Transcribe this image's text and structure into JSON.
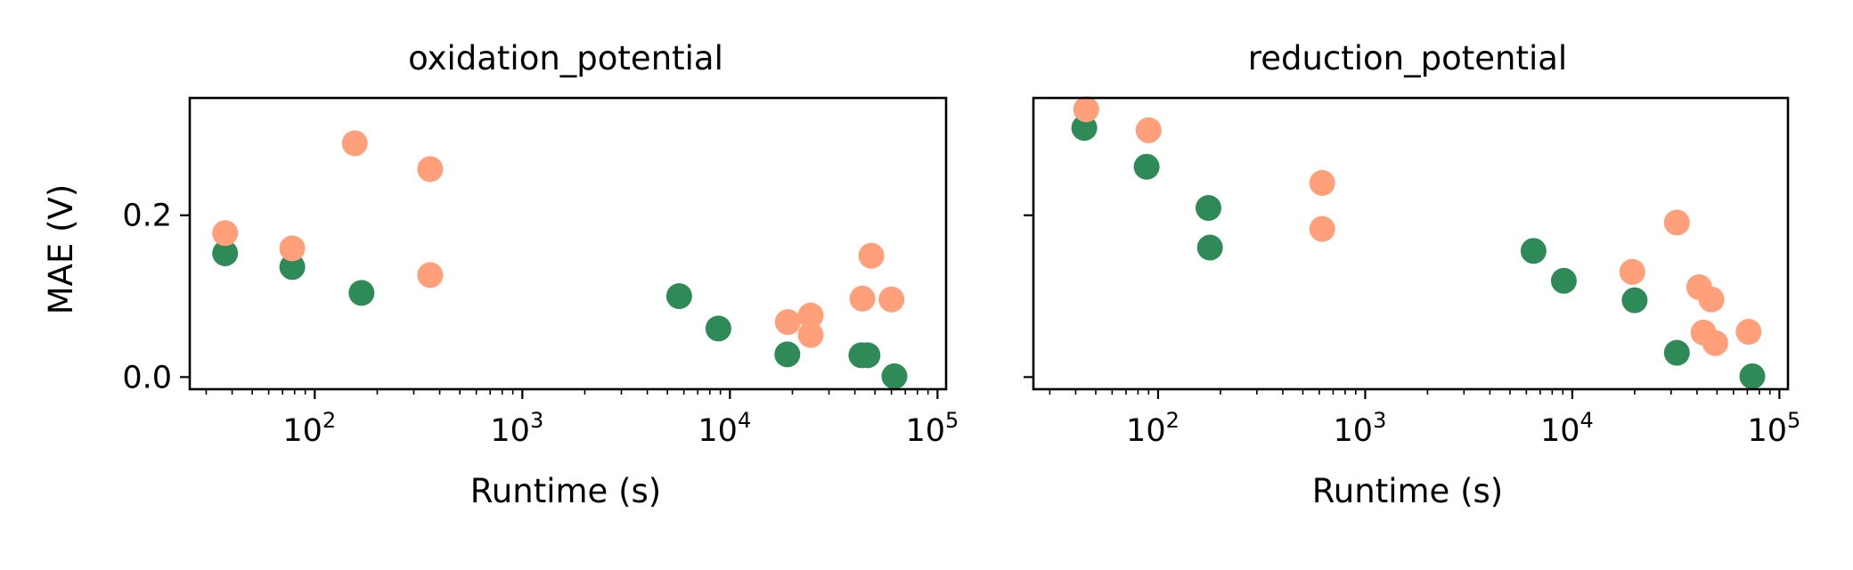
{
  "chart_data": [
    {
      "type": "scatter",
      "title": "oxidation_potential",
      "xlabel": "Runtime (s)",
      "ylabel": "MAE (V)",
      "xscale": "log",
      "xlim": [
        25,
        110000
      ],
      "ylim": [
        -0.015,
        0.345
      ],
      "xticks": [
        {
          "value": 100,
          "base": "10",
          "exp": "2"
        },
        {
          "value": 1000,
          "base": "10",
          "exp": "3"
        },
        {
          "value": 10000,
          "base": "10",
          "exp": "4"
        },
        {
          "value": 100000,
          "base": "10",
          "exp": "5"
        }
      ],
      "yticks": [
        {
          "value": 0.0,
          "label": "0.0"
        },
        {
          "value": 0.2,
          "label": "0.2"
        }
      ],
      "grid": false,
      "series": [
        {
          "color": "#2e8b57",
          "points": [
            [
              37,
              0.153
            ],
            [
              78,
              0.136
            ],
            [
              168,
              0.104
            ],
            [
              5700,
              0.1
            ],
            [
              8800,
              0.06
            ],
            [
              18900,
              0.028
            ],
            [
              43000,
              0.027
            ],
            [
              46000,
              0.027
            ],
            [
              62000,
              0.001
            ]
          ]
        },
        {
          "color": "#ffa07a",
          "points": [
            [
              37,
              0.178
            ],
            [
              78,
              0.159
            ],
            [
              156,
              0.289
            ],
            [
              360,
              0.257
            ],
            [
              360,
              0.126
            ],
            [
              19000,
              0.068
            ],
            [
              24500,
              0.076
            ],
            [
              24500,
              0.052
            ],
            [
              43500,
              0.097
            ],
            [
              48000,
              0.15
            ],
            [
              60000,
              0.096
            ]
          ]
        }
      ]
    },
    {
      "type": "scatter",
      "title": "reduction_potential",
      "xlabel": "Runtime (s)",
      "ylabel": "",
      "xscale": "log",
      "xlim": [
        25,
        110000
      ],
      "ylim": [
        -0.015,
        0.345
      ],
      "xticks": [
        {
          "value": 100,
          "base": "10",
          "exp": "2"
        },
        {
          "value": 1000,
          "base": "10",
          "exp": "3"
        },
        {
          "value": 10000,
          "base": "10",
          "exp": "4"
        },
        {
          "value": 100000,
          "base": "10",
          "exp": "5"
        }
      ],
      "yticks": [
        {
          "value": 0.0,
          "label": ""
        },
        {
          "value": 0.2,
          "label": ""
        }
      ],
      "grid": false,
      "series": [
        {
          "color": "#2e8b57",
          "points": [
            [
              44,
              0.308
            ],
            [
              88,
              0.26
            ],
            [
              175,
              0.209
            ],
            [
              178,
              0.16
            ],
            [
              6500,
              0.156
            ],
            [
              9100,
              0.119
            ],
            [
              20000,
              0.095
            ],
            [
              32000,
              0.03
            ],
            [
              74000,
              0.001
            ]
          ]
        },
        {
          "color": "#ffa07a",
          "points": [
            [
              45,
              0.331
            ],
            [
              90,
              0.305
            ],
            [
              620,
              0.24
            ],
            [
              620,
              0.183
            ],
            [
              19500,
              0.13
            ],
            [
              32000,
              0.191
            ],
            [
              41000,
              0.111
            ],
            [
              43000,
              0.055
            ],
            [
              47000,
              0.096
            ],
            [
              49000,
              0.042
            ],
            [
              71000,
              0.056
            ]
          ]
        }
      ]
    }
  ]
}
